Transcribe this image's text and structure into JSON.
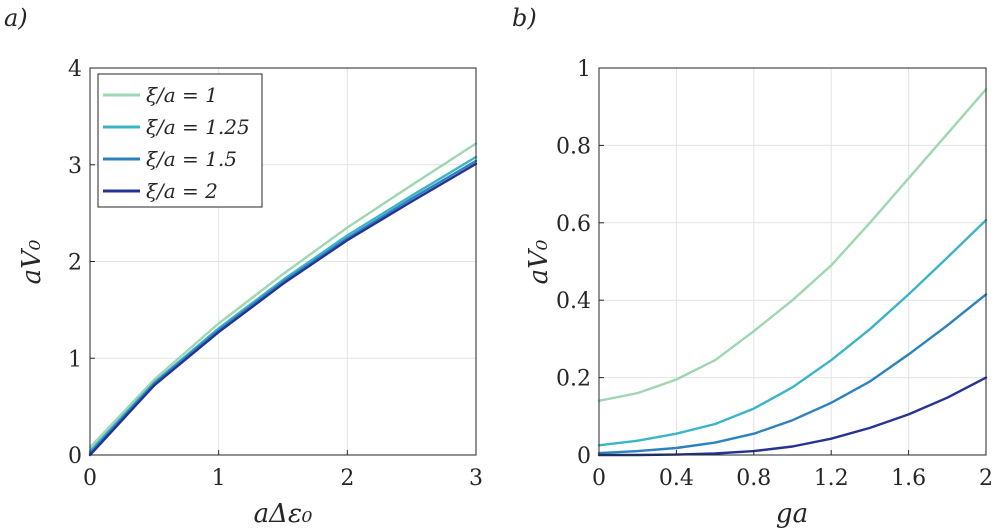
{
  "chart_data": [
    {
      "panel": "a)",
      "type": "line",
      "xlabel": "aΔε₀",
      "ylabel": "aV₀",
      "xlim": [
        0,
        3
      ],
      "ylim": [
        0,
        4
      ],
      "xticks": [
        "0",
        "1",
        "2",
        "3"
      ],
      "yticks": [
        "0",
        "1",
        "2",
        "3",
        "4"
      ],
      "grid": true,
      "legend_position": "top-left",
      "series": [
        {
          "name": "ξ/a = 1",
          "color": "#9ed7b1",
          "x": [
            0,
            0.5,
            1,
            1.5,
            2,
            2.5,
            3
          ],
          "y": [
            0.08,
            0.78,
            1.36,
            1.87,
            2.35,
            2.79,
            3.22
          ]
        },
        {
          "name": "ξ/a = 1.25",
          "color": "#3cb4c8",
          "x": [
            0,
            0.5,
            1,
            1.5,
            2,
            2.5,
            3
          ],
          "y": [
            0.04,
            0.75,
            1.31,
            1.81,
            2.27,
            2.68,
            3.08
          ]
        },
        {
          "name": "ξ/a = 1.5",
          "color": "#2c82bd",
          "x": [
            0,
            0.5,
            1,
            1.5,
            2,
            2.5,
            3
          ],
          "y": [
            0.02,
            0.74,
            1.29,
            1.79,
            2.24,
            2.65,
            3.04
          ]
        },
        {
          "name": "ξ/a = 2",
          "color": "#253494",
          "x": [
            0,
            0.5,
            1,
            1.5,
            2,
            2.5,
            3
          ],
          "y": [
            0.0,
            0.72,
            1.27,
            1.77,
            2.22,
            2.62,
            3.01
          ]
        }
      ]
    },
    {
      "panel": "b)",
      "type": "line",
      "xlabel": "ga",
      "ylabel": "aV₀",
      "xlim": [
        0,
        2
      ],
      "ylim": [
        0,
        1
      ],
      "xticks": [
        "0",
        "0.4",
        "0.8",
        "1.2",
        "1.6",
        "2"
      ],
      "yticks": [
        "0",
        "0.2",
        "0.4",
        "0.6",
        "0.8",
        "1"
      ],
      "grid": true,
      "series": [
        {
          "name": "ξ/a = 1",
          "color": "#9ed7b1",
          "x": [
            0,
            0.2,
            0.4,
            0.6,
            0.8,
            1.0,
            1.2,
            1.4,
            1.6,
            1.8,
            2.0
          ],
          "y": [
            0.14,
            0.16,
            0.195,
            0.245,
            0.32,
            0.4,
            0.49,
            0.6,
            0.715,
            0.83,
            0.945
          ]
        },
        {
          "name": "ξ/a = 1.25",
          "color": "#3cb4c8",
          "x": [
            0,
            0.2,
            0.4,
            0.6,
            0.8,
            1.0,
            1.2,
            1.4,
            1.6,
            1.8,
            2.0
          ],
          "y": [
            0.025,
            0.037,
            0.055,
            0.08,
            0.12,
            0.175,
            0.245,
            0.325,
            0.415,
            0.51,
            0.607
          ]
        },
        {
          "name": "ξ/a = 1.5",
          "color": "#2c82bd",
          "x": [
            0,
            0.2,
            0.4,
            0.6,
            0.8,
            1.0,
            1.2,
            1.4,
            1.6,
            1.8,
            2.0
          ],
          "y": [
            0.005,
            0.01,
            0.018,
            0.032,
            0.055,
            0.09,
            0.135,
            0.19,
            0.26,
            0.335,
            0.415
          ]
        },
        {
          "name": "ξ/a = 2",
          "color": "#253494",
          "x": [
            0,
            0.2,
            0.4,
            0.6,
            0.8,
            1.0,
            1.2,
            1.4,
            1.6,
            1.8,
            2.0
          ],
          "y": [
            0.0,
            0.0,
            0.001,
            0.004,
            0.01,
            0.022,
            0.042,
            0.07,
            0.105,
            0.148,
            0.2
          ]
        }
      ]
    }
  ]
}
